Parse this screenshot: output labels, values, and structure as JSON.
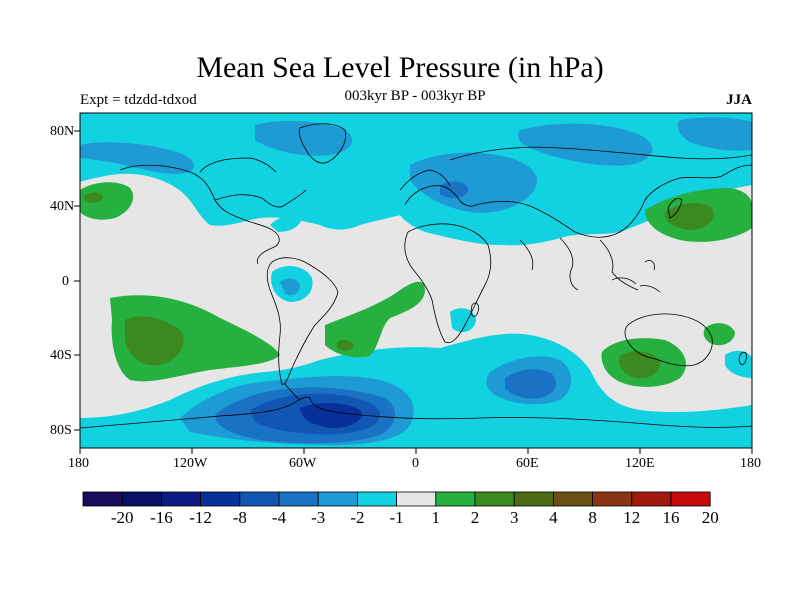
{
  "title": "Mean Sea Level Pressure (in hPa)",
  "subtitle_left": "Expt = tdzdd-tdxod",
  "subtitle_center": "003kyr BP - 003kyr BP",
  "subtitle_right": "JJA",
  "axes": {
    "lat_ticks": [
      "80N",
      "40N",
      "0",
      "40S",
      "80S"
    ],
    "lon_ticks": [
      "180",
      "120W",
      "60W",
      "0",
      "60E",
      "120E",
      "180"
    ]
  },
  "colorbar": {
    "levels": [
      "-20",
      "-16",
      "-12",
      "-8",
      "-4",
      "-3",
      "-2",
      "-1",
      "1",
      "2",
      "3",
      "4",
      "8",
      "12",
      "16",
      "20"
    ],
    "colors": [
      "#1c0c5c",
      "#0a1066",
      "#0c1a84",
      "#06309a",
      "#1256b4",
      "#1a72c4",
      "#1e9ad4",
      "#12d2e2",
      "#e6e6e6",
      "#26b040",
      "#3a8a20",
      "#4c6a14",
      "#6a5014",
      "#8a3416",
      "#a01a10",
      "#c80a0a"
    ]
  },
  "palette": {
    "background_fill": "#e6e6e6",
    "neg1": "#12d2e2",
    "neg2": "#1e9ad4",
    "neg3": "#1a72c4",
    "neg4": "#1256b4",
    "neg8": "#06309a",
    "pos1": "#26b040",
    "pos2": "#3a8a20",
    "pos3": "#4c6a14"
  }
}
